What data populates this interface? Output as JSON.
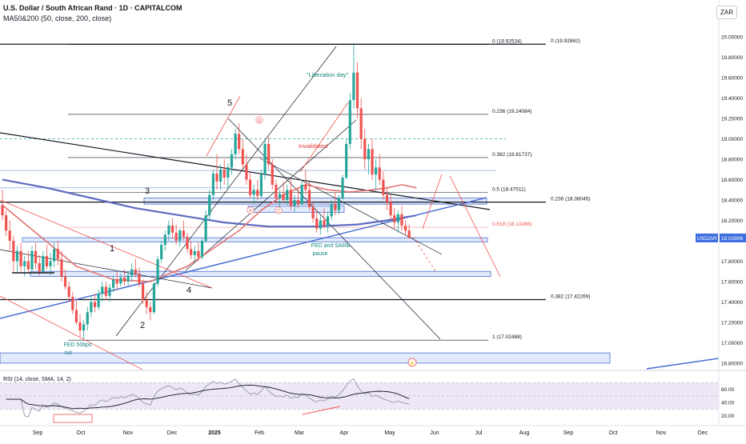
{
  "header": {
    "title": "U.S. Dollar / South African Rand · 1D · CAPITALCOM",
    "indicator": "MA50&200 (50, close, 200, close)",
    "currency_button": "ZAR"
  },
  "colors": {
    "up": "#26a69a",
    "down": "#ef5350",
    "ma50": "#e57373",
    "ma200": "#5c6bc0",
    "trendline": "#4a6fd0",
    "zone_fill": "#dbe6fb",
    "zone_stroke": "#4a6fd0",
    "text_red": "#e53935",
    "text_teal": "#12897d",
    "rsi_line": "#9598a1",
    "rsi_sma": "#131722",
    "rsi_band": "#ede7f6"
  },
  "chart_data": {
    "type": "candlestick",
    "symbol": "USDZAR",
    "ylim": [
      16.76,
      20.08
    ],
    "price_ticks": [
      "20.00000",
      "19.80000",
      "19.60000",
      "19.40000",
      "19.20000",
      "19.00000",
      "18.80000",
      "18.60000",
      "18.40000",
      "18.20000",
      "17.80000",
      "17.60000",
      "17.40000",
      "17.20000",
      "17.00000",
      "16.80000"
    ],
    "last_price": {
      "label": "USDZAR",
      "value": "18.02806"
    },
    "months": [
      "Sep",
      "Oct",
      "Nov",
      "Dec",
      "2025",
      "Feb",
      "Mar",
      "Apr",
      "May",
      "Jun",
      "Jul",
      "Aug",
      "Sep",
      "Oct",
      "Nov",
      "Dec"
    ],
    "candles": [
      [
        18.35,
        18.5,
        18.2,
        18.25
      ],
      [
        18.25,
        18.3,
        18.05,
        18.1
      ],
      [
        18.1,
        18.2,
        17.9,
        18.0
      ],
      [
        18.0,
        18.05,
        17.7,
        17.8
      ],
      [
        17.8,
        17.95,
        17.68,
        17.9
      ],
      [
        17.9,
        17.98,
        17.7,
        17.75
      ],
      [
        17.75,
        17.85,
        17.65,
        17.8
      ],
      [
        17.8,
        17.9,
        17.68,
        17.72
      ],
      [
        17.72,
        17.95,
        17.7,
        17.9
      ],
      [
        17.9,
        17.98,
        17.72,
        17.78
      ],
      [
        17.78,
        17.86,
        17.66,
        17.7
      ],
      [
        17.7,
        17.9,
        17.68,
        17.85
      ],
      [
        17.85,
        17.96,
        17.72,
        17.75
      ],
      [
        17.75,
        17.88,
        17.66,
        17.8
      ],
      [
        17.8,
        17.98,
        17.74,
        17.92
      ],
      [
        17.92,
        18.0,
        17.76,
        17.82
      ],
      [
        17.82,
        17.9,
        17.6,
        17.65
      ],
      [
        17.65,
        17.72,
        17.52,
        17.55
      ],
      [
        17.55,
        17.6,
        17.4,
        17.45
      ],
      [
        17.45,
        17.5,
        17.28,
        17.32
      ],
      [
        17.32,
        17.42,
        17.18,
        17.2
      ],
      [
        17.2,
        17.28,
        17.06,
        17.12
      ],
      [
        17.12,
        17.22,
        17.04,
        17.18
      ],
      [
        17.18,
        17.35,
        17.12,
        17.3
      ],
      [
        17.3,
        17.45,
        17.25,
        17.4
      ],
      [
        17.4,
        17.48,
        17.3,
        17.35
      ],
      [
        17.35,
        17.52,
        17.32,
        17.48
      ],
      [
        17.48,
        17.6,
        17.4,
        17.55
      ],
      [
        17.55,
        17.6,
        17.42,
        17.46
      ],
      [
        17.46,
        17.58,
        17.4,
        17.54
      ],
      [
        17.54,
        17.66,
        17.5,
        17.62
      ],
      [
        17.62,
        17.7,
        17.52,
        17.58
      ],
      [
        17.58,
        17.68,
        17.55,
        17.64
      ],
      [
        17.64,
        17.72,
        17.56,
        17.6
      ],
      [
        17.6,
        17.7,
        17.55,
        17.66
      ],
      [
        17.66,
        17.78,
        17.6,
        17.72
      ],
      [
        17.72,
        17.82,
        17.64,
        17.68
      ],
      [
        17.68,
        17.74,
        17.55,
        17.58
      ],
      [
        17.58,
        17.62,
        17.38,
        17.42
      ],
      [
        17.42,
        17.5,
        17.28,
        17.35
      ],
      [
        17.35,
        17.4,
        17.22,
        17.3
      ],
      [
        17.3,
        17.6,
        17.28,
        17.58
      ],
      [
        17.58,
        17.85,
        17.55,
        17.82
      ],
      [
        17.82,
        18.0,
        17.78,
        17.96
      ],
      [
        17.96,
        18.1,
        17.9,
        18.06
      ],
      [
        18.06,
        18.2,
        18.0,
        18.15
      ],
      [
        18.15,
        18.22,
        18.02,
        18.08
      ],
      [
        18.08,
        18.16,
        17.96,
        18.0
      ],
      [
        18.0,
        18.12,
        17.94,
        18.1
      ],
      [
        18.1,
        18.2,
        18.0,
        18.04
      ],
      [
        18.04,
        18.08,
        17.88,
        17.92
      ],
      [
        17.92,
        18.0,
        17.82,
        17.86
      ],
      [
        17.86,
        17.95,
        17.8,
        17.9
      ],
      [
        17.9,
        17.98,
        17.8,
        17.84
      ],
      [
        17.84,
        18.02,
        17.82,
        18.0
      ],
      [
        18.0,
        18.3,
        17.98,
        18.25
      ],
      [
        18.25,
        18.5,
        18.2,
        18.45
      ],
      [
        18.45,
        18.7,
        18.4,
        18.66
      ],
      [
        18.66,
        18.85,
        18.5,
        18.58
      ],
      [
        18.58,
        18.75,
        18.5,
        18.7
      ],
      [
        18.7,
        18.8,
        18.55,
        18.62
      ],
      [
        18.62,
        18.76,
        18.5,
        18.72
      ],
      [
        18.72,
        18.9,
        18.65,
        18.85
      ],
      [
        18.85,
        19.1,
        18.8,
        19.05
      ],
      [
        19.05,
        19.15,
        18.85,
        18.9
      ],
      [
        18.9,
        19.0,
        18.7,
        18.75
      ],
      [
        18.75,
        18.85,
        18.55,
        18.6
      ],
      [
        18.6,
        18.68,
        18.42,
        18.45
      ],
      [
        18.45,
        18.55,
        18.36,
        18.5
      ],
      [
        18.5,
        18.6,
        18.4,
        18.44
      ],
      [
        18.44,
        18.7,
        18.42,
        18.65
      ],
      [
        18.65,
        19.0,
        18.6,
        18.95
      ],
      [
        18.95,
        19.02,
        18.7,
        18.75
      ],
      [
        18.75,
        18.8,
        18.5,
        18.55
      ],
      [
        18.55,
        18.6,
        18.38,
        18.42
      ],
      [
        18.42,
        18.5,
        18.3,
        18.46
      ],
      [
        18.46,
        18.58,
        18.38,
        18.4
      ],
      [
        18.4,
        18.55,
        18.35,
        18.5
      ],
      [
        18.5,
        18.6,
        18.3,
        18.34
      ],
      [
        18.34,
        18.45,
        18.28,
        18.4
      ],
      [
        18.4,
        18.52,
        18.32,
        18.36
      ],
      [
        18.36,
        18.6,
        18.34,
        18.55
      ],
      [
        18.55,
        18.7,
        18.45,
        18.5
      ],
      [
        18.5,
        18.58,
        18.3,
        18.33
      ],
      [
        18.33,
        18.38,
        18.18,
        18.22
      ],
      [
        18.22,
        18.3,
        18.08,
        18.12
      ],
      [
        18.12,
        18.25,
        18.06,
        18.2
      ],
      [
        18.2,
        18.32,
        18.12,
        18.15
      ],
      [
        18.15,
        18.28,
        18.08,
        18.24
      ],
      [
        18.24,
        18.4,
        18.2,
        18.36
      ],
      [
        18.36,
        18.48,
        18.25,
        18.3
      ],
      [
        18.3,
        18.45,
        18.26,
        18.42
      ],
      [
        18.42,
        18.65,
        18.4,
        18.62
      ],
      [
        18.62,
        19.0,
        18.6,
        18.95
      ],
      [
        18.95,
        19.45,
        18.9,
        19.38
      ],
      [
        19.38,
        19.92,
        19.3,
        19.65
      ],
      [
        19.65,
        19.75,
        19.2,
        19.3
      ],
      [
        19.3,
        19.4,
        18.9,
        19.0
      ],
      [
        19.0,
        19.1,
        18.7,
        18.8
      ],
      [
        18.8,
        18.95,
        18.65,
        18.9
      ],
      [
        18.9,
        19.0,
        18.6,
        18.65
      ],
      [
        18.65,
        18.8,
        18.5,
        18.72
      ],
      [
        18.72,
        18.85,
        18.55,
        18.6
      ],
      [
        18.6,
        18.68,
        18.4,
        18.45
      ],
      [
        18.45,
        18.52,
        18.3,
        18.38
      ],
      [
        18.38,
        18.45,
        18.2,
        18.25
      ],
      [
        18.25,
        18.32,
        18.12,
        18.18
      ],
      [
        18.18,
        18.3,
        18.08,
        18.26
      ],
      [
        18.26,
        18.34,
        18.1,
        18.15
      ],
      [
        18.15,
        18.2,
        18.05,
        18.1
      ],
      [
        18.1,
        18.16,
        18.02,
        18.03
      ]
    ],
    "ma50": [
      [
        0,
        18.35
      ],
      [
        10,
        18.05
      ],
      [
        20,
        17.75
      ],
      [
        30,
        17.62
      ],
      [
        40,
        17.6
      ],
      [
        50,
        17.75
      ],
      [
        58,
        17.95
      ],
      [
        64,
        18.1
      ],
      [
        70,
        18.3
      ],
      [
        76,
        18.45
      ],
      [
        82,
        18.55
      ],
      [
        88,
        18.5
      ],
      [
        94,
        18.48
      ],
      [
        100,
        18.5
      ],
      [
        104,
        18.52
      ],
      [
        108,
        18.55
      ],
      [
        112,
        18.52
      ]
    ],
    "ma200": [
      [
        0,
        18.6
      ],
      [
        12,
        18.52
      ],
      [
        24,
        18.42
      ],
      [
        36,
        18.32
      ],
      [
        48,
        18.25
      ],
      [
        60,
        18.18
      ],
      [
        72,
        18.14
      ],
      [
        84,
        18.14
      ],
      [
        96,
        18.16
      ],
      [
        104,
        18.2
      ],
      [
        112,
        18.25
      ]
    ],
    "fib_levels": [
      {
        "text": "0 (19.92534)",
        "value": 19.925
      },
      {
        "text": "0.236 (19.24084)",
        "value": 19.241
      },
      {
        "text": "0.382 (18.81737)",
        "value": 18.817
      },
      {
        "text": "0.5 (18.47511)",
        "value": 18.475
      },
      {
        "text": "0.618 (18.13286)",
        "value": 18.133
      },
      {
        "text": "1 (17.02488)",
        "value": 17.025
      }
    ],
    "long_fib_levels": [
      {
        "text": "0 (19.92862)",
        "value": 19.929
      },
      {
        "text": "0.236 (18.38045)",
        "value": 18.38
      },
      {
        "text": "0.382 (17.42269)",
        "value": 17.423
      }
    ],
    "wave_labels": [
      "1",
      "2",
      "3",
      "4",
      "5"
    ],
    "corrective_labels": [
      "A",
      "B",
      "C"
    ],
    "annotations": {
      "liberation": "\"Liberation day\"",
      "invalidated": "Invalidated",
      "fed_sarb": [
        "FED and SARB",
        "pause"
      ],
      "fed_cut": [
        "FED 50bps",
        "cut"
      ]
    },
    "rsi": {
      "title": "RSI (14, close, SMA, 14, 2)",
      "ticks": [
        "60.00",
        "40.00",
        "20.00"
      ],
      "ylim": [
        10,
        85
      ],
      "band": [
        30,
        70
      ]
    }
  }
}
